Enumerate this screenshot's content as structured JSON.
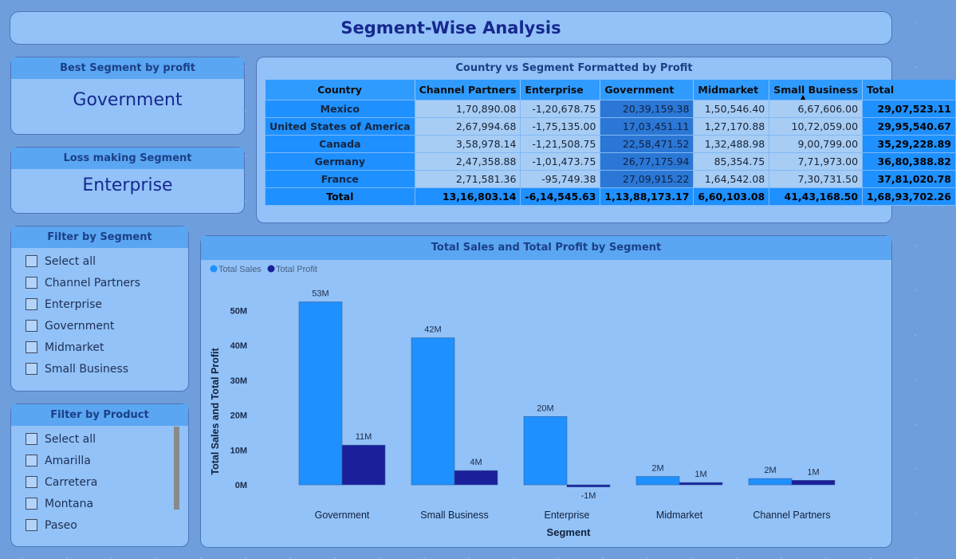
{
  "header": {
    "title": "Segment-Wise Analysis"
  },
  "best_card": {
    "title": "Best Segment by profit",
    "value": "Government"
  },
  "loss_card": {
    "title": "Loss making Segment",
    "value": "Enterprise"
  },
  "segment_filter": {
    "title": "Filter by Segment",
    "items": [
      "Select all",
      "Channel Partners",
      "Enterprise",
      "Government",
      "Midmarket",
      "Small Business"
    ]
  },
  "product_filter": {
    "title": "Filter by Product",
    "items": [
      "Select all",
      "Amarilla",
      "Carretera",
      "Montana",
      "Paseo"
    ]
  },
  "matrix": {
    "title": "Country vs Segment Formatted by Profit",
    "columns": [
      "Country",
      "Channel Partners",
      "Enterprise",
      "Government",
      "Midmarket",
      "Small Business",
      "Total"
    ],
    "rows": [
      [
        "Mexico",
        "1,70,890.08",
        "-1,20,678.75",
        "20,39,159.38",
        "1,50,546.40",
        "6,67,606.00",
        "29,07,523.11"
      ],
      [
        "United States of America",
        "2,67,994.68",
        "-1,75,135.00",
        "17,03,451.11",
        "1,27,170.88",
        "10,72,059.00",
        "29,95,540.67"
      ],
      [
        "Canada",
        "3,58,978.14",
        "-1,21,508.75",
        "22,58,471.52",
        "1,32,488.98",
        "9,00,799.00",
        "35,29,228.89"
      ],
      [
        "Germany",
        "2,47,358.88",
        "-1,01,473.75",
        "26,77,175.94",
        "85,354.75",
        "7,71,973.00",
        "36,80,388.82"
      ],
      [
        "France",
        "2,71,581.36",
        "-95,749.38",
        "27,09,915.22",
        "1,64,542.08",
        "7,30,731.50",
        "37,81,020.78"
      ]
    ],
    "total_row": [
      "Total",
      "13,16,803.14",
      "-6,14,545.63",
      "1,13,88,173.17",
      "6,60,103.08",
      "41,43,168.50",
      "1,68,93,702.26"
    ]
  },
  "chart_data": {
    "type": "bar",
    "title": "Total Sales and Total Profit by Segment",
    "xlabel": "Segment",
    "ylabel": "Total Sales and Total Profit",
    "categories": [
      "Government",
      "Small Business",
      "Enterprise",
      "Midmarket",
      "Channel Partners"
    ],
    "series": [
      {
        "name": "Total Sales",
        "color": "#1e90ff",
        "values": [
          52.5,
          42.2,
          19.6,
          2.4,
          1.8
        ],
        "labels": [
          "53M",
          "42M",
          "20M",
          "2M",
          "2M"
        ]
      },
      {
        "name": "Total Profit",
        "color": "#1a1f9a",
        "values": [
          11.4,
          4.1,
          -0.6,
          0.66,
          1.3
        ],
        "labels": [
          "11M",
          "4M",
          "-1M",
          "1M",
          "1M"
        ]
      }
    ],
    "yticks": [
      "0M",
      "10M",
      "20M",
      "30M",
      "40M",
      "50M"
    ],
    "ylim": [
      -1.5,
      55
    ],
    "legend_position": "top-left",
    "grid": false
  }
}
